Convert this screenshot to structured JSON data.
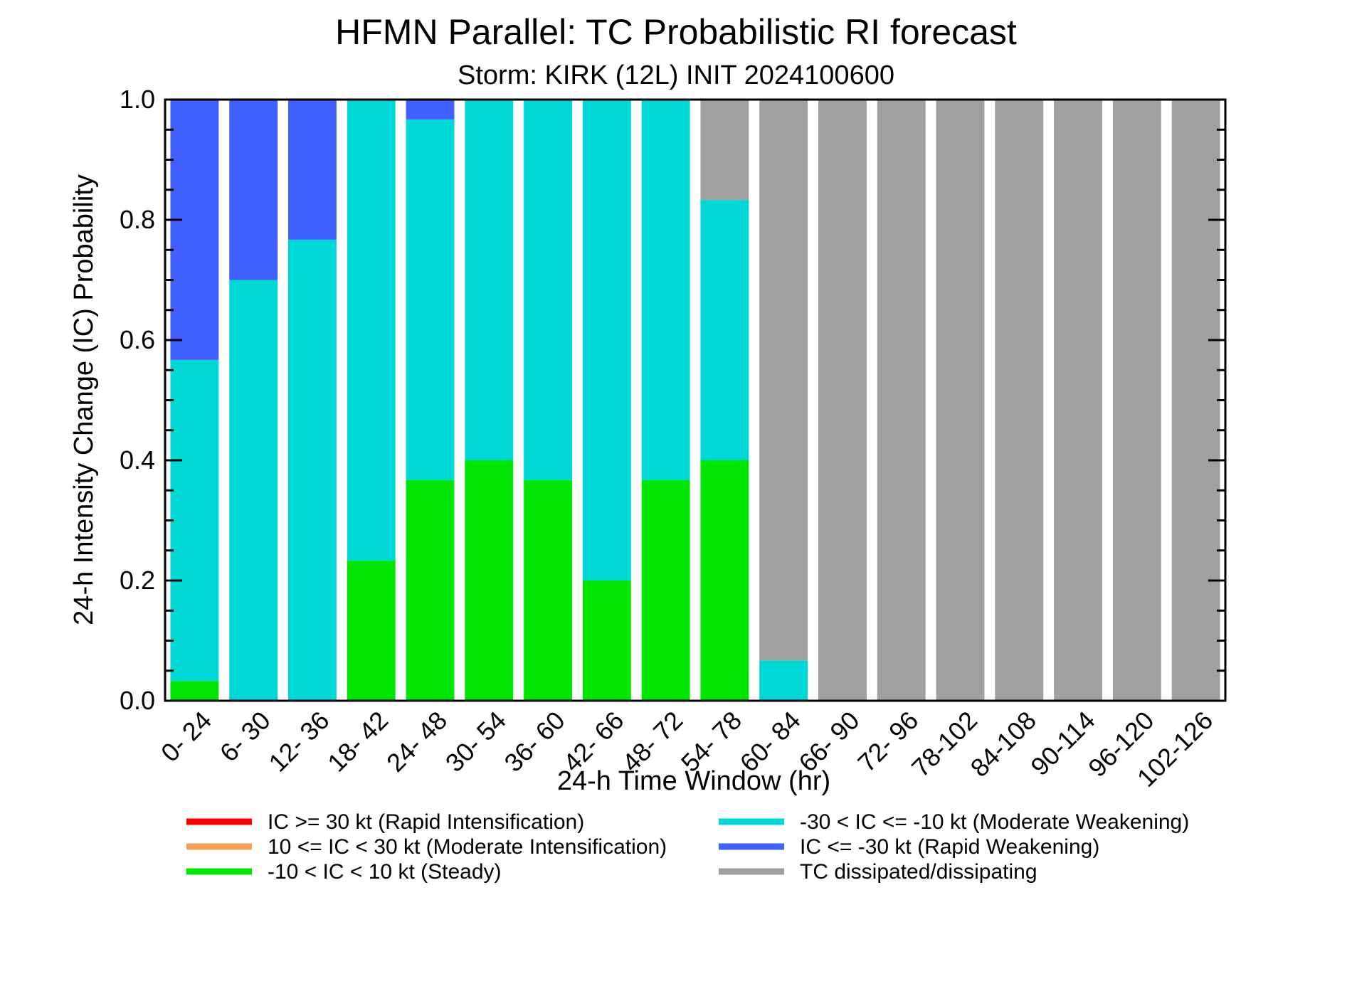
{
  "chart_data": {
    "type": "bar",
    "stacked": true,
    "title": "HFMN Parallel: TC Probabilistic RI forecast",
    "subtitle": "Storm: KIRK (12L) INIT 2024100600",
    "xlabel": "24-h Time Window (hr)",
    "ylabel": "24-h Intensity Change (IC) Probability",
    "ylim": [
      0,
      1
    ],
    "yticks": [
      "0.0",
      "0.2",
      "0.4",
      "0.6",
      "0.8",
      "1.0"
    ],
    "grid": false,
    "categories": [
      "0- 24",
      "6- 30",
      "12- 36",
      "18- 42",
      "24- 48",
      "30- 54",
      "36- 60",
      "42- 66",
      "48- 72",
      "54- 78",
      "60- 84",
      "66- 90",
      "72- 96",
      "78-102",
      "84-108",
      "90-114",
      "96-120",
      "102-126"
    ],
    "series": [
      {
        "name": "IC >= 30 kt (Rapid Intensification)",
        "color": "#ff0000",
        "values": [
          0,
          0,
          0,
          0,
          0,
          0,
          0,
          0,
          0,
          0,
          0,
          0,
          0,
          0,
          0,
          0,
          0,
          0
        ]
      },
      {
        "name": "10 <= IC < 30 kt (Moderate Intensification)",
        "color": "#f0a050",
        "values": [
          0,
          0,
          0,
          0,
          0,
          0,
          0,
          0,
          0,
          0,
          0,
          0,
          0,
          0,
          0,
          0,
          0,
          0
        ]
      },
      {
        "name": "-10 < IC < 10 kt (Steady)",
        "color": "#00e600",
        "values": [
          0.033,
          0,
          0,
          0.233,
          0.367,
          0.4,
          0.367,
          0.2,
          0.367,
          0.4,
          0,
          0,
          0,
          0,
          0,
          0,
          0,
          0
        ]
      },
      {
        "name": "-30 < IC <= -10 kt (Moderate Weakening)",
        "color": "#00d8d8",
        "values": [
          0.534,
          0.7,
          0.767,
          0.767,
          0.6,
          0.6,
          0.633,
          0.8,
          0.633,
          0.433,
          0.067,
          0,
          0,
          0,
          0,
          0,
          0,
          0
        ]
      },
      {
        "name": "IC <= -30 kt (Rapid Weakening)",
        "color": "#3f5fff",
        "values": [
          0.433,
          0.3,
          0.233,
          0,
          0.033,
          0,
          0,
          0,
          0,
          0,
          0,
          0,
          0,
          0,
          0,
          0,
          0,
          0
        ]
      },
      {
        "name": "TC dissipated/dissipating",
        "color": "#a0a0a0",
        "values": [
          0,
          0,
          0,
          0,
          0,
          0,
          0,
          0,
          0,
          0.167,
          0.933,
          1,
          1,
          1,
          1,
          1,
          1,
          1
        ]
      }
    ],
    "legend_placement": "bottom, two columns"
  }
}
